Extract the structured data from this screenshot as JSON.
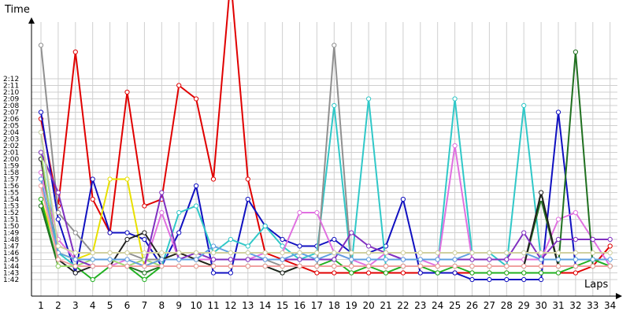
{
  "chart_data": {
    "type": "line",
    "xlabel": "Laps",
    "ylabel": "Time",
    "x": [
      1,
      2,
      3,
      4,
      5,
      6,
      7,
      8,
      9,
      10,
      11,
      12,
      13,
      14,
      15,
      16,
      17,
      18,
      19,
      20,
      21,
      22,
      23,
      24,
      25,
      26,
      27,
      28,
      29,
      30,
      31,
      32,
      33,
      34
    ],
    "y_ticks": [
      "1:42",
      "1:43",
      "1:44",
      "1:45",
      "1:46",
      "1:47",
      "1:48",
      "1:49",
      "1:50",
      "1:51",
      "1:52",
      "1:53",
      "1:54",
      "1:55",
      "1:56",
      "1:57",
      "1:58",
      "1:59",
      "2:00",
      "2:01",
      "2:02",
      "2:03",
      "2:04",
      "2:05",
      "2:06",
      "2:07",
      "2:08",
      "2:09",
      "2:10",
      "2:11",
      "2:12"
    ],
    "ylim_seconds": [
      102,
      138
    ],
    "grid": true,
    "series": [
      {
        "color": "#e00000",
        "values": [
          126,
          113,
          136,
          114,
          109,
          130,
          113,
          114,
          131,
          129,
          117,
          147,
          117,
          106,
          105,
          104,
          103,
          103,
          103,
          103,
          103,
          103,
          103,
          103,
          103,
          103,
          103,
          103,
          103,
          103,
          103,
          103,
          104,
          107
        ]
      },
      {
        "color": "#1010c0",
        "values": [
          127,
          111,
          103,
          117,
          109,
          109,
          108,
          104,
          109,
          116,
          103,
          103,
          114,
          110,
          108,
          107,
          107,
          108,
          106,
          106,
          107,
          114,
          103,
          103,
          103,
          102,
          102,
          102,
          102,
          102,
          127,
          104,
          104,
          104
        ]
      },
      {
        "color": "#e8e000",
        "values": [
          114,
          106,
          105,
          106,
          117,
          117,
          104,
          105,
          106,
          105,
          104,
          104,
          104,
          104,
          104,
          104,
          104,
          104,
          104,
          104,
          104,
          104,
          104,
          104,
          104,
          104,
          104,
          104,
          104,
          104,
          104,
          104,
          104,
          104
        ]
      },
      {
        "color": "#30c8c8",
        "values": [
          124,
          106,
          104,
          104,
          104,
          104,
          104,
          104,
          112,
          113,
          106,
          108,
          107,
          110,
          107,
          105,
          106,
          128,
          104,
          129,
          104,
          104,
          104,
          104,
          129,
          106,
          106,
          104,
          128,
          105,
          105,
          105,
          105,
          104
        ]
      },
      {
        "color": "#20b020",
        "values": [
          114,
          104,
          104,
          102,
          104,
          104,
          102,
          104,
          104,
          104,
          104,
          104,
          104,
          104,
          103,
          104,
          104,
          105,
          103,
          104,
          103,
          104,
          104,
          103,
          104,
          103,
          103,
          103,
          103,
          103,
          103,
          104,
          105,
          104
        ]
      },
      {
        "color": "#909090",
        "values": [
          137,
          112,
          109,
          106,
          106,
          106,
          105,
          105,
          105,
          105,
          105,
          105,
          105,
          105,
          104,
          104,
          104,
          137,
          104,
          104,
          104,
          104,
          104,
          104,
          104,
          104,
          104,
          104,
          104,
          104,
          104,
          104,
          104,
          104
        ]
      },
      {
        "color": "#e070e0",
        "values": [
          118,
          108,
          105,
          104,
          104,
          105,
          104,
          112,
          105,
          105,
          105,
          105,
          105,
          106,
          106,
          112,
          112,
          106,
          105,
          104,
          106,
          105,
          105,
          104,
          122,
          105,
          105,
          105,
          105,
          105,
          111,
          112,
          108,
          104
        ]
      },
      {
        "color": "#207020",
        "values": [
          113,
          104,
          104,
          104,
          104,
          104,
          103,
          104,
          104,
          104,
          104,
          104,
          104,
          104,
          104,
          104,
          104,
          104,
          104,
          104,
          104,
          104,
          104,
          104,
          104,
          104,
          104,
          104,
          104,
          114,
          104,
          136,
          104,
          104
        ]
      },
      {
        "color": "#202020",
        "values": [
          120,
          105,
          103,
          104,
          104,
          108,
          109,
          105,
          106,
          105,
          104,
          104,
          104,
          104,
          103,
          104,
          104,
          104,
          104,
          104,
          104,
          104,
          104,
          104,
          104,
          104,
          104,
          104,
          104,
          115,
          104,
          104,
          104,
          104
        ]
      },
      {
        "color": "#a0d870",
        "values": [
          121,
          104,
          104,
          105,
          105,
          104,
          105,
          104,
          104,
          104,
          104,
          104,
          104,
          104,
          104,
          104,
          104,
          104,
          104,
          104,
          104,
          104,
          104,
          104,
          104,
          104,
          104,
          104,
          104,
          104,
          104,
          104,
          104,
          104
        ]
      },
      {
        "color": "#8030c0",
        "values": [
          121,
          115,
          105,
          104,
          104,
          104,
          104,
          115,
          105,
          106,
          105,
          105,
          105,
          105,
          105,
          105,
          105,
          105,
          109,
          107,
          106,
          105,
          105,
          105,
          105,
          105,
          105,
          105,
          109,
          105,
          108,
          108,
          108,
          108
        ]
      },
      {
        "color": "#60a0e0",
        "values": [
          117,
          106,
          105,
          105,
          105,
          105,
          104,
          105,
          105,
          105,
          107,
          106,
          106,
          105,
          105,
          106,
          105,
          106,
          105,
          105,
          105,
          105,
          105,
          105,
          105,
          106,
          106,
          106,
          106,
          105,
          105,
          105,
          105,
          105
        ]
      },
      {
        "color": "#f0a0a0",
        "values": [
          116,
          105,
          104,
          104,
          104,
          104,
          104,
          104,
          104,
          104,
          104,
          104,
          104,
          104,
          104,
          104,
          104,
          104,
          104,
          104,
          104,
          104,
          104,
          104,
          104,
          104,
          104,
          104,
          104,
          104,
          104,
          104,
          104,
          104
        ]
      },
      {
        "color": "#d0d0a0",
        "values": [
          124,
          107,
          106,
          106,
          106,
          106,
          106,
          106,
          106,
          106,
          106,
          106,
          106,
          106,
          106,
          106,
          106,
          106,
          106,
          106,
          106,
          106,
          106,
          106,
          106,
          106,
          106,
          106,
          106,
          106,
          106,
          106,
          106,
          106
        ]
      }
    ]
  }
}
